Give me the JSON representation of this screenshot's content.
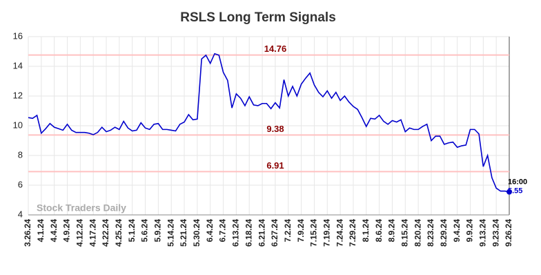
{
  "chart_data": {
    "type": "line",
    "title": "RSLS Long Term Signals",
    "watermark": "Stock Traders Daily",
    "end_time": "16:00",
    "categories": [
      "3.26.24",
      null,
      null,
      "4.1.24",
      null,
      null,
      "4.4.24",
      null,
      null,
      "4.9.24",
      null,
      null,
      "4.12.24",
      null,
      null,
      "4.17.24",
      null,
      null,
      "4.22.24",
      null,
      null,
      "4.25.24",
      null,
      null,
      "5.1.24",
      null,
      null,
      "5.6.24",
      null,
      null,
      "5.9.24",
      null,
      null,
      "5.14.24",
      null,
      null,
      "5.21.24",
      null,
      null,
      "5.30.24",
      null,
      null,
      "6.4.24",
      null,
      null,
      "6.7.24",
      null,
      null,
      "6.13.24",
      null,
      null,
      "6.18.24",
      null,
      null,
      "6.21.24",
      null,
      null,
      "6.27.24",
      null,
      null,
      "7.2.24",
      null,
      null,
      "7.9.24",
      null,
      null,
      "7.15.24",
      null,
      null,
      "7.19.24",
      null,
      null,
      "7.24.24",
      null,
      null,
      "7.29.24",
      null,
      null,
      "8.1.24",
      null,
      null,
      "8.6.24",
      null,
      null,
      "8.9.24",
      null,
      null,
      "8.15.24",
      null,
      null,
      "8.20.24",
      null,
      null,
      "8.23.24",
      null,
      null,
      "8.29.24",
      null,
      null,
      "9.4.24",
      null,
      null,
      "9.9.24",
      null,
      null,
      "9.13.24",
      null,
      null,
      "9.23.24",
      null,
      null,
      "9.26.24"
    ],
    "values": [
      10.55,
      10.5,
      10.7,
      9.5,
      9.8,
      10.15,
      9.9,
      9.8,
      9.7,
      10.1,
      9.7,
      9.55,
      9.55,
      9.55,
      9.5,
      9.4,
      9.55,
      9.9,
      9.6,
      9.7,
      9.9,
      9.75,
      10.3,
      9.85,
      9.65,
      9.7,
      10.2,
      9.85,
      9.75,
      10.1,
      10.15,
      9.75,
      9.75,
      9.7,
      9.65,
      10.1,
      10.25,
      10.75,
      10.4,
      10.45,
      14.5,
      14.75,
      14.2,
      14.85,
      14.75,
      13.6,
      13.05,
      11.2,
      12.15,
      11.85,
      11.35,
      11.95,
      11.4,
      11.35,
      11.5,
      11.5,
      11.15,
      11.55,
      11.2,
      13.1,
      12.0,
      12.65,
      12.0,
      12.8,
      13.2,
      13.55,
      12.75,
      12.25,
      11.95,
      12.35,
      11.85,
      12.25,
      11.7,
      12.0,
      11.6,
      11.3,
      11.1,
      10.55,
      9.95,
      10.5,
      10.45,
      10.7,
      10.3,
      10.1,
      10.35,
      10.25,
      10.4,
      9.6,
      9.85,
      9.75,
      9.75,
      9.95,
      10.1,
      9.0,
      9.3,
      9.3,
      8.75,
      8.85,
      8.9,
      8.55,
      8.65,
      8.7,
      9.75,
      9.75,
      9.45,
      7.25,
      8.0,
      6.5,
      5.8,
      5.6,
      5.6,
      5.55
    ],
    "color": "#0000cc",
    "levels": [
      14.76,
      9.38,
      6.91
    ],
    "level_color": "#ffc0c0",
    "level_label_color": "#8b0000",
    "ylim": [
      4,
      16
    ],
    "yticks": [
      4,
      6,
      8,
      10,
      12,
      14,
      16
    ],
    "grid": true
  }
}
